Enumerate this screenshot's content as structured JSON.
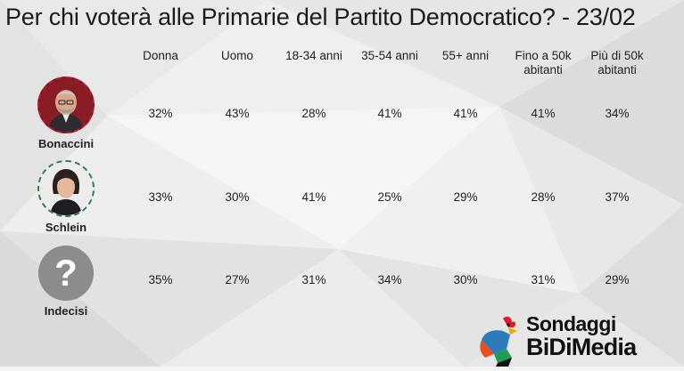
{
  "title": "Per chi voterà alle Primarie del Partito Democratico? - 23/02",
  "columns": [
    [
      "Donna"
    ],
    [
      "Uomo"
    ],
    [
      "18-34 anni"
    ],
    [
      "35-54 anni"
    ],
    [
      "55+ anni"
    ],
    [
      "Fino a 50k",
      "abitanti"
    ],
    [
      "Più di 50k",
      "abitanti"
    ]
  ],
  "candidates": [
    {
      "name": "Bonaccini",
      "icon": "bonaccini-photo",
      "ring_color": "#b21f2d"
    },
    {
      "name": "Schlein",
      "icon": "schlein-photo",
      "ring_color": "#2f7a4f"
    },
    {
      "name": "Indecisi",
      "icon": "question-mark-icon",
      "ring_color": "#888888"
    }
  ],
  "chart_data": {
    "type": "table",
    "title": "Per chi voterà alle Primarie del Partito Democratico? - 23/02",
    "columns": [
      "Donna",
      "Uomo",
      "18-34 anni",
      "35-54 anni",
      "55+ anni",
      "Fino a 50k abitanti",
      "Più di 50k abitanti"
    ],
    "rows": [
      "Bonaccini",
      "Schlein",
      "Indecisi"
    ],
    "values": [
      [
        "32%",
        "43%",
        "28%",
        "41%",
        "41%",
        "41%",
        "34%"
      ],
      [
        "33%",
        "30%",
        "41%",
        "25%",
        "29%",
        "28%",
        "37%"
      ],
      [
        "35%",
        "27%",
        "31%",
        "34%",
        "30%",
        "31%",
        "29%"
      ]
    ]
  },
  "logo": {
    "line1": "Sondaggi",
    "line2": "BiDiMedia"
  }
}
